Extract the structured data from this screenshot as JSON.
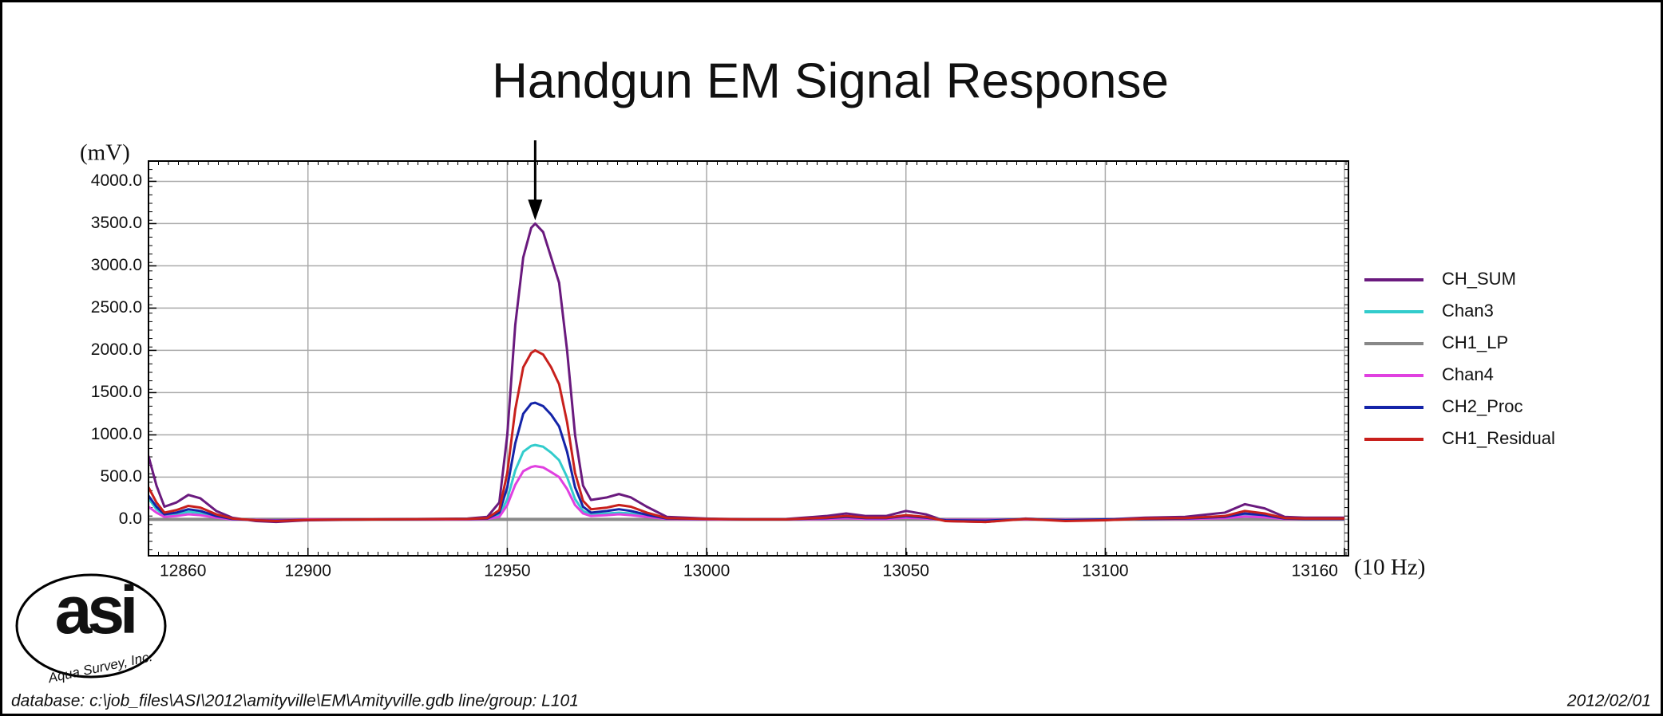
{
  "chart_data": {
    "type": "line",
    "title": "Handgun EM Signal Response",
    "y_label": "(mV)",
    "x_label": "(10 Hz)",
    "footer": "database: c:\\job_files\\ASI\\2012\\amityville\\EM\\Amityville.gdb  line/group: L101",
    "date": "2012/02/01",
    "logo": {
      "text": "asi",
      "caption": "Aqua Survey, Inc."
    },
    "legend": "right",
    "grid": true,
    "xlim": [
      12860,
      13161
    ],
    "ylim": [
      -430,
      4240
    ],
    "xticks": [
      12860,
      12900,
      12950,
      13000,
      13050,
      13100,
      13160
    ],
    "yticks": [
      {
        "value": 0,
        "label": "0.0"
      },
      {
        "value": 500,
        "label": "500.0"
      },
      {
        "value": 1000,
        "label": "1000.0"
      },
      {
        "value": 1500,
        "label": "1500.0"
      },
      {
        "value": 2000,
        "label": "2000.0"
      },
      {
        "value": 2500,
        "label": "2500.0"
      },
      {
        "value": 3000,
        "label": "3000.0"
      },
      {
        "value": 3500,
        "label": "3500.0"
      },
      {
        "value": 4000,
        "label": "4000.0"
      }
    ],
    "x": [
      12860,
      12862,
      12864,
      12867,
      12870,
      12873,
      12877,
      12881,
      12887,
      12892,
      12900,
      12920,
      12940,
      12945,
      12948,
      12950,
      12952,
      12954,
      12956,
      12957,
      12959,
      12961,
      12963,
      12965,
      12967,
      12969,
      12971,
      12975,
      12978,
      12981,
      12985,
      12990,
      13000,
      13010,
      13020,
      13030,
      13035,
      13040,
      13045,
      13050,
      13055,
      13060,
      13070,
      13080,
      13090,
      13100,
      13110,
      13120,
      13130,
      13135,
      13140,
      13145,
      13150,
      13160
    ],
    "series": [
      {
        "name": "CH_SUM",
        "color": "#6a1a7e",
        "values": [
          750,
          400,
          150,
          200,
          290,
          250,
          100,
          20,
          -20,
          -30,
          -10,
          0,
          10,
          30,
          200,
          1000,
          2300,
          3100,
          3450,
          3500,
          3400,
          3100,
          2800,
          2000,
          1000,
          400,
          230,
          260,
          300,
          260,
          150,
          30,
          10,
          0,
          5,
          40,
          70,
          40,
          40,
          100,
          60,
          -20,
          -30,
          10,
          -10,
          0,
          20,
          30,
          80,
          180,
          130,
          30,
          20,
          20
        ]
      },
      {
        "name": "Chan3",
        "color": "#33cccc",
        "values": [
          250,
          120,
          50,
          60,
          90,
          75,
          30,
          5,
          -5,
          -10,
          0,
          0,
          5,
          10,
          50,
          240,
          580,
          800,
          870,
          880,
          860,
          790,
          700,
          500,
          240,
          100,
          60,
          70,
          80,
          70,
          40,
          10,
          5,
          0,
          0,
          10,
          20,
          10,
          10,
          30,
          15,
          0,
          -5,
          5,
          0,
          0,
          5,
          10,
          20,
          50,
          35,
          10,
          5,
          5
        ]
      },
      {
        "name": "CH1_LP",
        "color": "#888888",
        "values": [
          0,
          0,
          0,
          0,
          0,
          0,
          0,
          0,
          0,
          0,
          0,
          0,
          0,
          0,
          0,
          0,
          0,
          0,
          0,
          0,
          0,
          0,
          0,
          0,
          0,
          0,
          0,
          0,
          0,
          0,
          0,
          0,
          0,
          0,
          0,
          0,
          0,
          0,
          0,
          0,
          0,
          0,
          0,
          0,
          0,
          0,
          0,
          0,
          0,
          0,
          0,
          0,
          0,
          0
        ]
      },
      {
        "name": "Chan4",
        "color": "#e040e0",
        "values": [
          150,
          80,
          30,
          40,
          60,
          50,
          20,
          0,
          -5,
          -10,
          0,
          0,
          0,
          5,
          30,
          170,
          410,
          570,
          620,
          630,
          615,
          560,
          500,
          360,
          170,
          70,
          40,
          50,
          60,
          50,
          30,
          5,
          0,
          0,
          0,
          5,
          15,
          5,
          5,
          20,
          10,
          -5,
          -5,
          0,
          -5,
          0,
          5,
          5,
          15,
          35,
          25,
          5,
          5,
          5
        ]
      },
      {
        "name": "CH2_Proc",
        "color": "#1424a8",
        "values": [
          280,
          150,
          60,
          80,
          120,
          100,
          40,
          5,
          -10,
          -15,
          -5,
          0,
          5,
          10,
          80,
          380,
          900,
          1250,
          1370,
          1380,
          1340,
          1240,
          1100,
          800,
          380,
          150,
          80,
          100,
          120,
          100,
          55,
          10,
          5,
          0,
          0,
          15,
          30,
          15,
          15,
          40,
          20,
          -10,
          -15,
          5,
          -10,
          0,
          5,
          10,
          30,
          70,
          50,
          10,
          5,
          5
        ]
      },
      {
        "name": "CH1_Residual",
        "color": "#c8201c",
        "values": [
          380,
          200,
          80,
          110,
          160,
          140,
          60,
          10,
          -10,
          -20,
          -5,
          0,
          5,
          15,
          110,
          550,
          1300,
          1800,
          1970,
          2000,
          1950,
          1800,
          1600,
          1150,
          550,
          220,
          120,
          140,
          170,
          150,
          80,
          15,
          5,
          0,
          0,
          20,
          40,
          20,
          20,
          50,
          30,
          -20,
          -30,
          5,
          -20,
          -10,
          10,
          15,
          40,
          100,
          70,
          15,
          10,
          10
        ]
      }
    ]
  }
}
